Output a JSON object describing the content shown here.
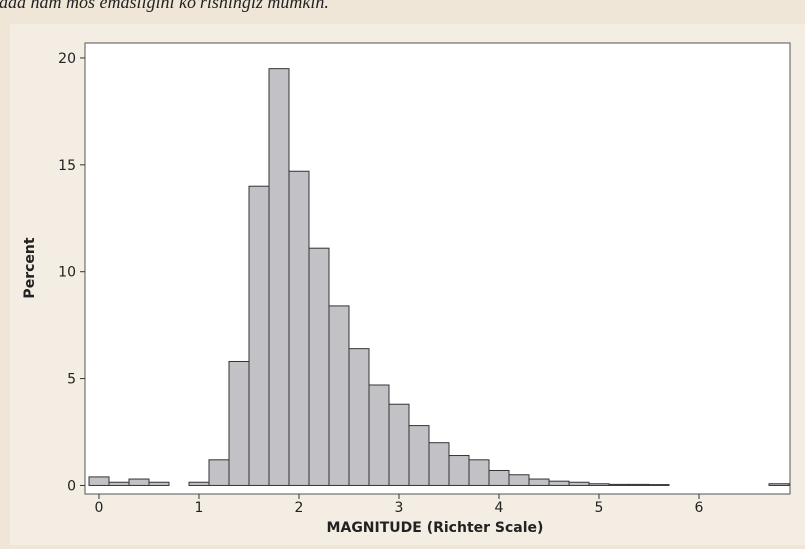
{
  "caption": "fada ham mos emasligini ko'rishingiz mumkin.",
  "chart_data": {
    "type": "histogram",
    "xlabel": "MAGNITUDE (Richter Scale)",
    "ylabel": "Percent",
    "bins": [
      -0.1,
      0.1,
      0.3,
      0.5,
      0.7,
      0.9,
      1.1,
      1.3,
      1.5,
      1.7,
      1.9,
      2.1,
      2.3,
      2.5,
      2.7,
      2.9,
      3.1,
      3.3,
      3.5,
      3.7,
      3.9,
      4.1,
      4.3,
      4.5,
      4.7,
      4.9,
      5.1,
      5.3,
      5.5,
      5.7,
      5.9,
      6.1,
      6.3,
      6.5,
      6.7,
      6.9
    ],
    "counts": [
      0.4,
      0.15,
      0.3,
      0.15,
      0,
      0.15,
      1.2,
      5.8,
      14.0,
      19.5,
      14.7,
      11.1,
      8.4,
      6.4,
      4.7,
      3.8,
      2.8,
      2.0,
      1.4,
      1.2,
      0.7,
      0.5,
      0.3,
      0.2,
      0.15,
      0.08,
      0.05,
      0.05,
      0.04,
      0,
      0,
      0,
      0,
      0,
      0.08
    ],
    "color": "#c2c2c6",
    "xlim": [
      -0.14,
      6.91
    ],
    "ylim": [
      -0.4,
      20.7
    ],
    "xticks": [
      0,
      1,
      2,
      3,
      4,
      5,
      6
    ],
    "yticks": [
      0,
      5,
      10,
      15,
      20
    ]
  }
}
